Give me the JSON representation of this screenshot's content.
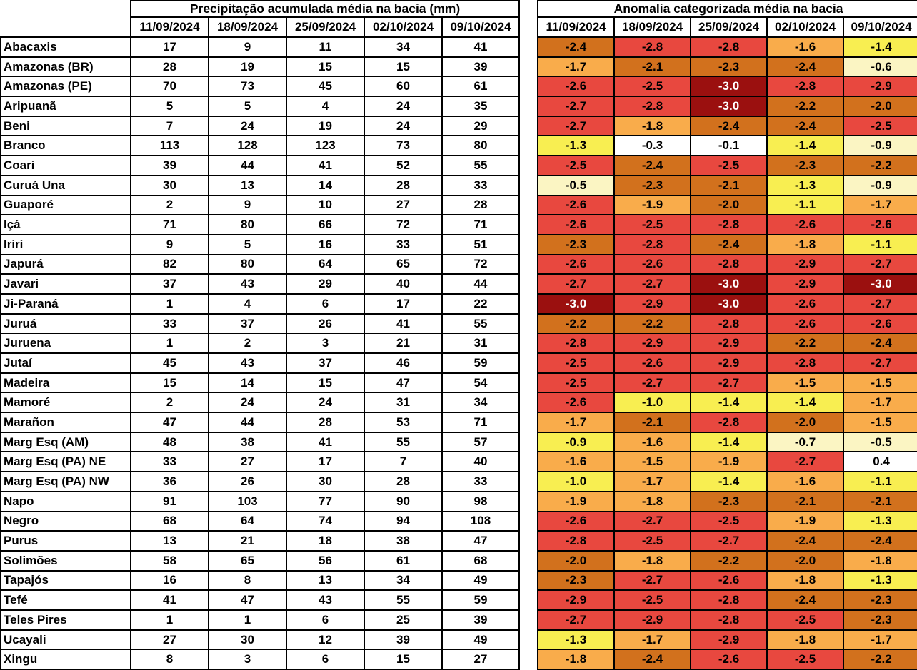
{
  "chart_data": [
    {
      "type": "table",
      "title": "Precipitação acumulada média na bacia (mm)",
      "columns": [
        "11/09/2024",
        "18/09/2024",
        "25/09/2024",
        "02/10/2024",
        "09/10/2024"
      ],
      "rows": [
        "Abacaxis",
        "Amazonas (BR)",
        "Amazonas (PE)",
        "Aripuanã",
        "Beni",
        "Branco",
        "Coari",
        "Curuá Una",
        "Guaporé",
        "Içá",
        "Iriri",
        "Japurá",
        "Javari",
        "Ji-Paraná",
        "Juruá",
        "Juruena",
        "Jutaí",
        "Madeira",
        "Mamoré",
        "Marañon",
        "Marg Esq (AM)",
        "Marg Esq (PA) NE",
        "Marg Esq (PA) NW",
        "Napo",
        "Negro",
        "Purus",
        "Solimões",
        "Tapajós",
        "Tefé",
        "Teles Pires",
        "Ucayali",
        "Xingu"
      ],
      "values": [
        [
          17,
          9,
          11,
          34,
          41
        ],
        [
          28,
          19,
          15,
          15,
          39
        ],
        [
          70,
          73,
          45,
          60,
          61
        ],
        [
          5,
          5,
          4,
          24,
          35
        ],
        [
          7,
          24,
          19,
          24,
          29
        ],
        [
          113,
          128,
          123,
          73,
          80
        ],
        [
          39,
          44,
          41,
          52,
          55
        ],
        [
          30,
          13,
          14,
          28,
          33
        ],
        [
          2,
          9,
          10,
          27,
          28
        ],
        [
          71,
          80,
          66,
          72,
          71
        ],
        [
          9,
          5,
          16,
          33,
          51
        ],
        [
          82,
          80,
          64,
          65,
          72
        ],
        [
          37,
          43,
          29,
          40,
          44
        ],
        [
          1,
          4,
          6,
          17,
          22
        ],
        [
          33,
          37,
          26,
          41,
          55
        ],
        [
          1,
          2,
          3,
          21,
          31
        ],
        [
          45,
          43,
          37,
          46,
          59
        ],
        [
          15,
          14,
          15,
          47,
          54
        ],
        [
          2,
          24,
          24,
          31,
          34
        ],
        [
          47,
          44,
          28,
          53,
          71
        ],
        [
          48,
          38,
          41,
          55,
          57
        ],
        [
          33,
          27,
          17,
          7,
          40
        ],
        [
          36,
          26,
          30,
          28,
          33
        ],
        [
          91,
          103,
          77,
          90,
          98
        ],
        [
          68,
          64,
          74,
          94,
          108
        ],
        [
          13,
          21,
          18,
          38,
          47
        ],
        [
          58,
          65,
          56,
          61,
          68
        ],
        [
          16,
          8,
          13,
          34,
          49
        ],
        [
          41,
          47,
          43,
          55,
          59
        ],
        [
          1,
          1,
          6,
          25,
          39
        ],
        [
          27,
          30,
          12,
          39,
          49
        ],
        [
          8,
          3,
          6,
          15,
          27
        ]
      ]
    },
    {
      "type": "heatmap",
      "title": "Anomalia categorizada média na bacia",
      "columns": [
        "11/09/2024",
        "18/09/2024",
        "25/09/2024",
        "02/10/2024",
        "09/10/2024"
      ],
      "rows": [
        "Abacaxis",
        "Amazonas (BR)",
        "Amazonas (PE)",
        "Aripuanã",
        "Beni",
        "Branco",
        "Coari",
        "Curuá Una",
        "Guaporé",
        "Içá",
        "Iriri",
        "Japurá",
        "Javari",
        "Ji-Paraná",
        "Juruá",
        "Juruena",
        "Jutaí",
        "Madeira",
        "Mamoré",
        "Marañon",
        "Marg Esq (AM)",
        "Marg Esq (PA) NE",
        "Marg Esq (PA) NW",
        "Napo",
        "Negro",
        "Purus",
        "Solimões",
        "Tapajós",
        "Tefé",
        "Teles Pires",
        "Ucayali",
        "Xingu"
      ],
      "value_range": [
        -3.0,
        0.4
      ],
      "values": [
        [
          -2.4,
          -2.8,
          -2.8,
          -1.6,
          -1.4
        ],
        [
          -1.7,
          -2.1,
          -2.3,
          -2.4,
          -0.6
        ],
        [
          -2.6,
          -2.5,
          -3.0,
          -2.8,
          -2.9
        ],
        [
          -2.7,
          -2.8,
          -3.0,
          -2.2,
          -2.0
        ],
        [
          -2.7,
          -1.8,
          -2.4,
          -2.4,
          -2.5
        ],
        [
          -1.3,
          -0.3,
          -0.1,
          -1.4,
          -0.9
        ],
        [
          -2.5,
          -2.4,
          -2.5,
          -2.3,
          -2.2
        ],
        [
          -0.5,
          -2.3,
          -2.1,
          -1.3,
          -0.9
        ],
        [
          -2.6,
          -1.9,
          -2.0,
          -1.1,
          -1.7
        ],
        [
          -2.6,
          -2.5,
          -2.8,
          -2.6,
          -2.6
        ],
        [
          -2.3,
          -2.8,
          -2.4,
          -1.8,
          -1.1
        ],
        [
          -2.6,
          -2.6,
          -2.8,
          -2.9,
          -2.7
        ],
        [
          -2.7,
          -2.7,
          -3.0,
          -2.9,
          -3.0
        ],
        [
          -3.0,
          -2.9,
          -3.0,
          -2.6,
          -2.7
        ],
        [
          -2.2,
          -2.2,
          -2.8,
          -2.6,
          -2.6
        ],
        [
          -2.8,
          -2.9,
          -2.9,
          -2.2,
          -2.4
        ],
        [
          -2.5,
          -2.6,
          -2.9,
          -2.8,
          -2.7
        ],
        [
          -2.5,
          -2.7,
          -2.7,
          -1.5,
          -1.5
        ],
        [
          -2.6,
          -1.0,
          -1.4,
          -1.4,
          -1.7
        ],
        [
          -1.7,
          -2.1,
          -2.8,
          -2.0,
          -1.5
        ],
        [
          -0.9,
          -1.6,
          -1.4,
          -0.7,
          -0.5
        ],
        [
          -1.6,
          -1.5,
          -1.9,
          -2.7,
          0.4
        ],
        [
          -1.0,
          -1.7,
          -1.4,
          -1.6,
          -1.1
        ],
        [
          -1.9,
          -1.8,
          -2.3,
          -2.1,
          -2.1
        ],
        [
          -2.6,
          -2.7,
          -2.5,
          -1.9,
          -1.3
        ],
        [
          -2.8,
          -2.5,
          -2.7,
          -2.4,
          -2.4
        ],
        [
          -2.0,
          -1.8,
          -2.2,
          -2.0,
          -1.8
        ],
        [
          -2.3,
          -2.7,
          -2.6,
          -1.8,
          -1.3
        ],
        [
          -2.9,
          -2.5,
          -2.8,
          -2.4,
          -2.3
        ],
        [
          -2.7,
          -2.9,
          -2.8,
          -2.5,
          -2.3
        ],
        [
          -1.3,
          -1.7,
          -2.9,
          -1.8,
          -1.7
        ],
        [
          -1.8,
          -2.4,
          -2.6,
          -2.5,
          -2.2
        ]
      ],
      "cell_colors": [
        [
          "do",
          "r",
          "r",
          "o",
          "y"
        ],
        [
          "o",
          "do",
          "do",
          "do",
          "c"
        ],
        [
          "r",
          "r",
          "dr",
          "r",
          "r"
        ],
        [
          "r",
          "r",
          "dr",
          "do",
          "do"
        ],
        [
          "r",
          "o",
          "do",
          "do",
          "r"
        ],
        [
          "y",
          "w",
          "w",
          "y",
          "c"
        ],
        [
          "r",
          "do",
          "r",
          "do",
          "do"
        ],
        [
          "c",
          "do",
          "do",
          "y",
          "c"
        ],
        [
          "r",
          "o",
          "do",
          "y",
          "o"
        ],
        [
          "r",
          "r",
          "r",
          "r",
          "r"
        ],
        [
          "do",
          "r",
          "do",
          "o",
          "y"
        ],
        [
          "r",
          "r",
          "r",
          "r",
          "r"
        ],
        [
          "r",
          "r",
          "dr",
          "r",
          "dr"
        ],
        [
          "dr",
          "r",
          "dr",
          "r",
          "r"
        ],
        [
          "do",
          "do",
          "r",
          "r",
          "r"
        ],
        [
          "r",
          "r",
          "r",
          "do",
          "do"
        ],
        [
          "r",
          "r",
          "r",
          "r",
          "r"
        ],
        [
          "r",
          "r",
          "r",
          "o",
          "o"
        ],
        [
          "r",
          "y",
          "y",
          "y",
          "o"
        ],
        [
          "o",
          "do",
          "r",
          "do",
          "o"
        ],
        [
          "y",
          "o",
          "y",
          "c",
          "c"
        ],
        [
          "o",
          "o",
          "o",
          "r",
          "w"
        ],
        [
          "y",
          "o",
          "y",
          "o",
          "y"
        ],
        [
          "o",
          "o",
          "do",
          "do",
          "do"
        ],
        [
          "r",
          "r",
          "r",
          "o",
          "y"
        ],
        [
          "r",
          "r",
          "r",
          "do",
          "do"
        ],
        [
          "do",
          "o",
          "do",
          "do",
          "o"
        ],
        [
          "do",
          "r",
          "r",
          "o",
          "y"
        ],
        [
          "r",
          "r",
          "r",
          "do",
          "do"
        ],
        [
          "r",
          "r",
          "r",
          "r",
          "do"
        ],
        [
          "y",
          "o",
          "r",
          "o",
          "o"
        ],
        [
          "o",
          "do",
          "r",
          "r",
          "do"
        ]
      ],
      "palette": {
        "w": "#ffffff",
        "c": "#fbf5c3",
        "y": "#f8ee51",
        "o": "#f9ac4b",
        "do": "#d2711d",
        "r": "#e8483f",
        "dr": "#9b100f"
      },
      "dark_cell_text_color": "#ffffff",
      "text_color": "#000000"
    }
  ]
}
